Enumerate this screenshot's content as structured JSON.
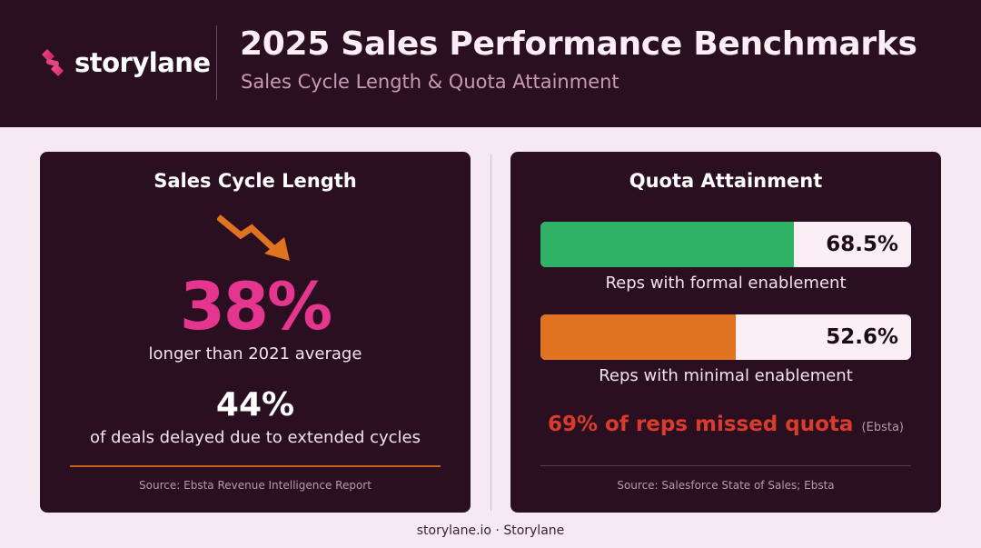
{
  "header": {
    "brand": "storylane",
    "title": "2025 Sales Performance Benchmarks",
    "subtitle": "Sales Cycle Length & Quota Attainment"
  },
  "left_panel": {
    "title": "Sales Cycle Length",
    "trend_icon": "arrow-trending-down-icon",
    "primary_value": "38%",
    "primary_caption": "longer than 2021 average",
    "secondary_value": "44%",
    "secondary_caption": "of deals delayed due to extended cycles",
    "source": "Source: Ebsta Revenue Intelligence Report"
  },
  "right_panel": {
    "title": "Quota Attainment",
    "bars": [
      {
        "value_label": "68.5%",
        "value": 68.5,
        "caption": "Reps with formal enablement",
        "color": "#2fb266"
      },
      {
        "value_label": "52.6%",
        "value": 52.6,
        "caption": "Reps with minimal enablement",
        "color": "#e0731f"
      }
    ],
    "highlight": "69% of reps missed quota",
    "highlight_source": "(Ebsta)",
    "source": "Source: Salesforce State of Sales; Ebsta"
  },
  "footer": "storylane.io · Storylane",
  "colors": {
    "background_dark": "#2a0f20",
    "background_light": "#f7e9f1",
    "accent_pink": "#e5368f",
    "accent_orange": "#e0731f",
    "accent_green": "#2fb266",
    "alert_red": "#d93b2c"
  }
}
